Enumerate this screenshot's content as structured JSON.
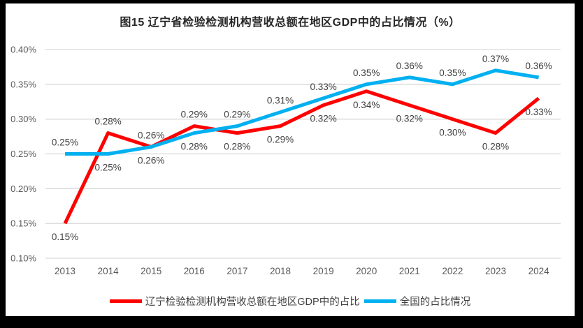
{
  "title": "图15 辽宁省检验检测机构营收总额在地区GDP中的占比情况（%）",
  "colors": {
    "frame": "#000000",
    "card": "#FFFFFF",
    "title_text": "#262626",
    "grid": "#D9D9D9",
    "axis_text": "#595959",
    "data_label_text": "#404040",
    "legend_text": "#404040"
  },
  "chart_data": {
    "type": "line",
    "x_categories": [
      "2013",
      "2014",
      "2015",
      "2016",
      "2017",
      "2018",
      "2019",
      "2020",
      "2021",
      "2022",
      "2023",
      "2024"
    ],
    "series": [
      {
        "name": "辽宁检验检测机构营收总额在地区GDP中的占比",
        "color": "#FF0000",
        "values": [
          0.15,
          0.28,
          0.26,
          0.29,
          0.28,
          0.29,
          0.32,
          0.34,
          0.32,
          0.3,
          0.28,
          0.33
        ],
        "data_labels": [
          "0.15%",
          "0.28%",
          "0.26%",
          "0.29%",
          "0.28%",
          "0.29%",
          "0.32%",
          "0.34%",
          "0.32%",
          "0.30%",
          "0.28%",
          "0.33%"
        ],
        "label_side": [
          "below",
          "above",
          "above",
          "above",
          "below",
          "below",
          "below",
          "below",
          "below",
          "below",
          "below",
          "below"
        ]
      },
      {
        "name": "全国的占比情况",
        "color": "#00B0F0",
        "values": [
          0.25,
          0.25,
          0.26,
          0.28,
          0.29,
          0.31,
          0.33,
          0.35,
          0.36,
          0.35,
          0.37,
          0.36
        ],
        "data_labels": [
          "0.25%",
          "0.25%",
          "0.26%",
          "0.28%",
          "0.29%",
          "0.31%",
          "0.33%",
          "0.35%",
          "0.36%",
          "0.35%",
          "0.37%",
          "0.36%"
        ],
        "label_side": [
          "above",
          "below",
          "below",
          "below",
          "above",
          "above",
          "above",
          "above",
          "above",
          "above",
          "above",
          "above"
        ]
      }
    ],
    "y_ticks": [
      {
        "value": 0.4,
        "label": "0.40%"
      },
      {
        "value": 0.35,
        "label": "0.35%"
      },
      {
        "value": 0.3,
        "label": "0.30%"
      },
      {
        "value": 0.25,
        "label": "0.25%"
      },
      {
        "value": 0.2,
        "label": "0.20%"
      },
      {
        "value": 0.15,
        "label": "0.15%"
      },
      {
        "value": 0.1,
        "label": "0.10%"
      }
    ],
    "ylim": [
      0.1,
      0.4
    ],
    "xlabel": "",
    "ylabel": "",
    "grid": true,
    "legend_position": "bottom"
  }
}
